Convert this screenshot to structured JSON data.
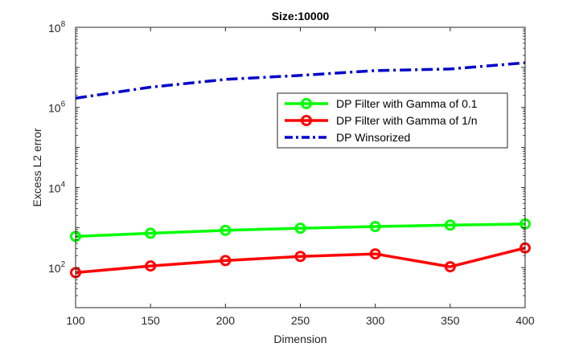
{
  "chart_data": {
    "type": "line",
    "title": "Size:10000",
    "xlabel": "Dimension",
    "ylabel": "Excess L2 error",
    "x": [
      100,
      150,
      200,
      250,
      300,
      350,
      400
    ],
    "xlim": [
      100,
      400
    ],
    "xticks": [
      "100",
      "150",
      "200",
      "250",
      "300",
      "350",
      "400"
    ],
    "ylog": true,
    "ylim_log10": [
      1,
      8
    ],
    "yticks": [
      {
        "exp": 2,
        "base": "10",
        "sup": "2"
      },
      {
        "exp": 4,
        "base": "10",
        "sup": "4"
      },
      {
        "exp": 6,
        "base": "10",
        "sup": "6"
      },
      {
        "exp": 8,
        "base": "10",
        "sup": "8"
      }
    ],
    "grid": false,
    "legend_position": "upper-right",
    "series": [
      {
        "name": "DP Filter with Gamma of 0.1",
        "color": "#00ff00",
        "style": "solid",
        "marker": "circle",
        "values": [
          600,
          720,
          850,
          960,
          1060,
          1150,
          1230
        ]
      },
      {
        "name": "DP Filter with Gamma of 1/n",
        "color": "#ff0000",
        "style": "solid",
        "marker": "circle",
        "values": [
          75,
          110,
          150,
          190,
          220,
          105,
          310
        ]
      },
      {
        "name": "DP Winsorized",
        "color": "#0000cc",
        "style": "dashdot",
        "marker": "none",
        "values": [
          1700000,
          3200000,
          5000000,
          6300000,
          8300000,
          9100000,
          13000000
        ]
      }
    ]
  }
}
